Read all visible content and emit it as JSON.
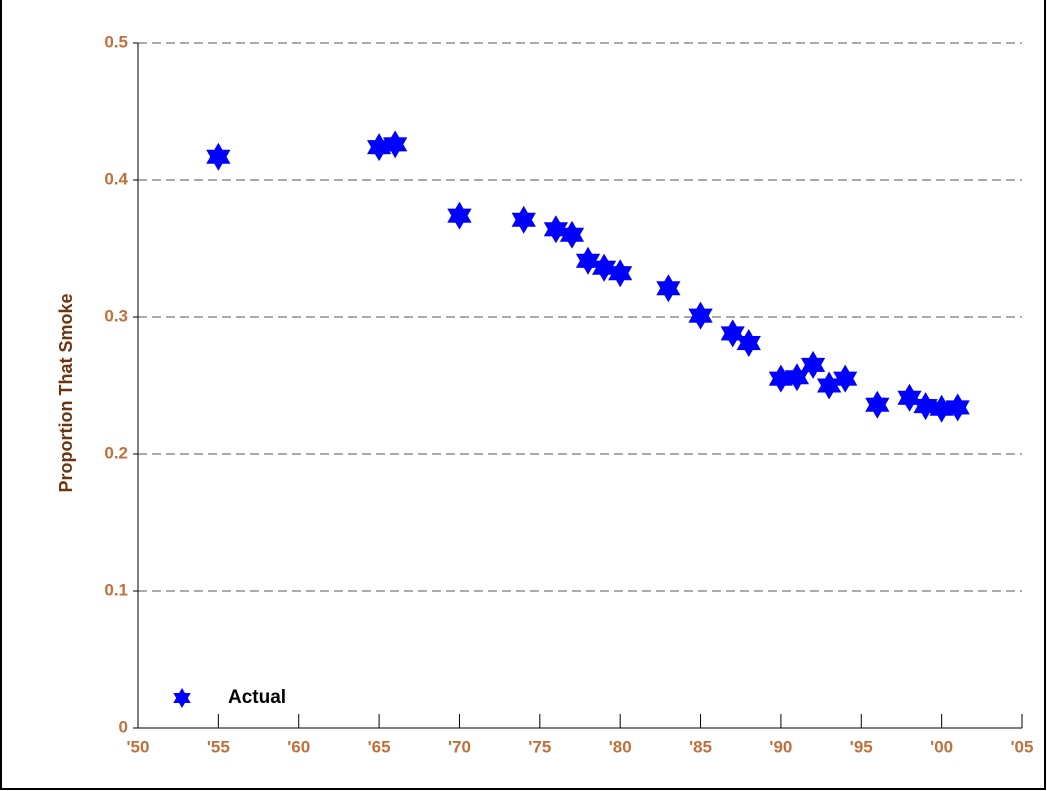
{
  "chart_data": {
    "type": "scatter",
    "y_label": "Proportion That Smoke",
    "series": [
      {
        "name": "Actual",
        "color": "#0000ff",
        "x": [
          1955,
          1965,
          1966,
          1970,
          1974,
          1976,
          1977,
          1978,
          1979,
          1980,
          1983,
          1985,
          1987,
          1988,
          1990,
          1991,
          1992,
          1993,
          1994,
          1996,
          1998,
          1999,
          2000,
          2001
        ],
        "values": [
          0.417,
          0.424,
          0.426,
          0.374,
          0.371,
          0.364,
          0.36,
          0.341,
          0.336,
          0.332,
          0.321,
          0.301,
          0.288,
          0.281,
          0.255,
          0.256,
          0.265,
          0.25,
          0.255,
          0.236,
          0.241,
          0.235,
          0.233,
          0.234
        ]
      }
    ],
    "xlim": [
      1950,
      2005
    ],
    "xticks": [
      {
        "value": 1950,
        "label": "'50"
      },
      {
        "value": 1955,
        "label": "'55"
      },
      {
        "value": 1960,
        "label": "'60"
      },
      {
        "value": 1965,
        "label": "'65"
      },
      {
        "value": 1970,
        "label": "'70"
      },
      {
        "value": 1975,
        "label": "'75"
      },
      {
        "value": 1980,
        "label": "'80"
      },
      {
        "value": 1985,
        "label": "'85"
      },
      {
        "value": 1990,
        "label": "'90"
      },
      {
        "value": 1995,
        "label": "'95"
      },
      {
        "value": 2000,
        "label": "'00"
      },
      {
        "value": 2005,
        "label": "'05"
      }
    ],
    "ylim": [
      0,
      0.5
    ],
    "yticks": [
      0,
      0.1,
      0.2,
      0.3,
      0.4,
      0.5
    ],
    "grid": true,
    "legend": "lower left"
  }
}
